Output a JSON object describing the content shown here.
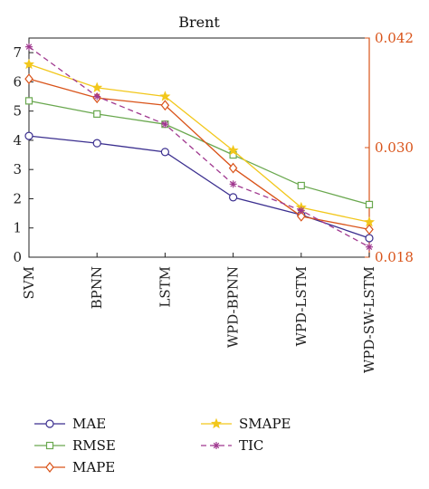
{
  "chart_data": {
    "type": "line",
    "title": "Brent",
    "categories": [
      "SVM",
      "BPNN",
      "LSTM",
      "WPD-BPNN",
      "WPD-LSTM",
      "WPD-SW-LSTM"
    ],
    "ylim_left": [
      0,
      7.5
    ],
    "yticks_left": [
      0,
      1,
      2,
      3,
      4,
      5,
      6,
      7
    ],
    "ylim_right": [
      0.018,
      0.042
    ],
    "yticks_right": [
      "0.018",
      "0.030",
      "0.042"
    ],
    "right_axis_color": "#d95319",
    "grid": false,
    "legend_position": "bottom",
    "series": [
      {
        "name": "MAE",
        "values": [
          4.15,
          3.9,
          3.6,
          2.05,
          1.45,
          0.65
        ],
        "color": "#3b2f8f",
        "marker": "circle",
        "dash": "solid"
      },
      {
        "name": "RMSE",
        "values": [
          5.35,
          4.9,
          4.55,
          3.5,
          2.45,
          1.8
        ],
        "color": "#6aa84f",
        "marker": "square",
        "dash": "solid"
      },
      {
        "name": "MAPE",
        "values": [
          6.1,
          5.45,
          5.2,
          3.05,
          1.4,
          0.95
        ],
        "color": "#d95319",
        "marker": "diamond",
        "dash": "solid"
      },
      {
        "name": "SMAPE",
        "values": [
          6.6,
          5.8,
          5.5,
          3.65,
          1.7,
          1.2
        ],
        "color": "#f2c71b",
        "marker": "star",
        "dash": "solid"
      },
      {
        "name": "TIC",
        "values": [
          7.2,
          5.5,
          4.55,
          2.5,
          1.6,
          0.35
        ],
        "color": "#a0388f",
        "marker": "asterisk",
        "dash": "dashed"
      }
    ]
  }
}
